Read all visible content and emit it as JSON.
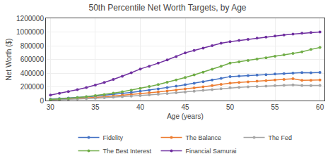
{
  "chart_data": {
    "type": "line",
    "title": "50th Percentile Net Worth Targets, by Age",
    "xlabel": "Age (years)",
    "ylabel": "Net Worth ($)",
    "x": [
      30,
      31,
      32,
      33,
      34,
      35,
      36,
      37,
      38,
      39,
      40,
      41,
      42,
      43,
      44,
      45,
      46,
      47,
      48,
      49,
      50,
      51,
      52,
      53,
      54,
      55,
      56,
      57,
      58,
      59,
      60
    ],
    "series": [
      {
        "name": "Fidelity",
        "color": "#4472C4",
        "values": [
          20000,
          27000,
          35000,
          44000,
          54000,
          65000,
          77000,
          90000,
          104000,
          119000,
          135000,
          152000,
          170000,
          189000,
          209000,
          230000,
          252000,
          275000,
          299000,
          324000,
          350000,
          357000,
          364000,
          371000,
          378000,
          386000,
          393000,
          400000,
          408000,
          405000,
          410000
        ]
      },
      {
        "name": "The Balance",
        "color": "#ED7D31",
        "values": [
          10000,
          16000,
          22000,
          29000,
          37000,
          46000,
          55000,
          65000,
          76000,
          87000,
          99000,
          112000,
          125000,
          139000,
          154000,
          169000,
          185000,
          201000,
          218000,
          236000,
          254000,
          263000,
          272000,
          281000,
          290000,
          299000,
          308000,
          317000,
          295000,
          296000,
          300000
        ]
      },
      {
        "name": "The Fed",
        "color": "#A5A5A5",
        "values": [
          8000,
          12000,
          17000,
          22000,
          28000,
          34000,
          41000,
          48000,
          56000,
          64000,
          73000,
          82000,
          92000,
          102000,
          113000,
          124000,
          136000,
          148000,
          160000,
          173000,
          187000,
          193000,
          199000,
          205000,
          211000,
          217000,
          223000,
          229000,
          220000,
          218000,
          220000
        ]
      },
      {
        "name": "The Best Interest",
        "color": "#70AD47",
        "values": [
          15000,
          22000,
          32000,
          43000,
          56000,
          71000,
          88000,
          107000,
          128000,
          151000,
          176000,
          204000,
          234000,
          266000,
          300000,
          336000,
          374000,
          414000,
          456000,
          500000,
          546000,
          565000,
          584000,
          604000,
          624000,
          645000,
          666000,
          688000,
          710000,
          745000,
          775000
        ]
      },
      {
        "name": "Financial Samurai",
        "color": "#7030A0",
        "values": [
          80000,
          105000,
          130000,
          158000,
          190000,
          225000,
          265000,
          308000,
          355000,
          405000,
          460000,
          500000,
          545000,
          592000,
          642000,
          696000,
          730000,
          765000,
          800000,
          835000,
          860000,
          877000,
          893000,
          910000,
          926000,
          942000,
          957000,
          970000,
          982000,
          993000,
          1000000
        ]
      }
    ],
    "xlim": [
      29.5,
      60.5
    ],
    "xticks": [
      30,
      35,
      40,
      45,
      50,
      55,
      60
    ],
    "ylim": [
      0,
      1200000
    ],
    "yticks": [
      0,
      200000,
      400000,
      600000,
      800000,
      1000000,
      1200000
    ],
    "marker": "circle",
    "grid": true,
    "legend": "bottom"
  }
}
